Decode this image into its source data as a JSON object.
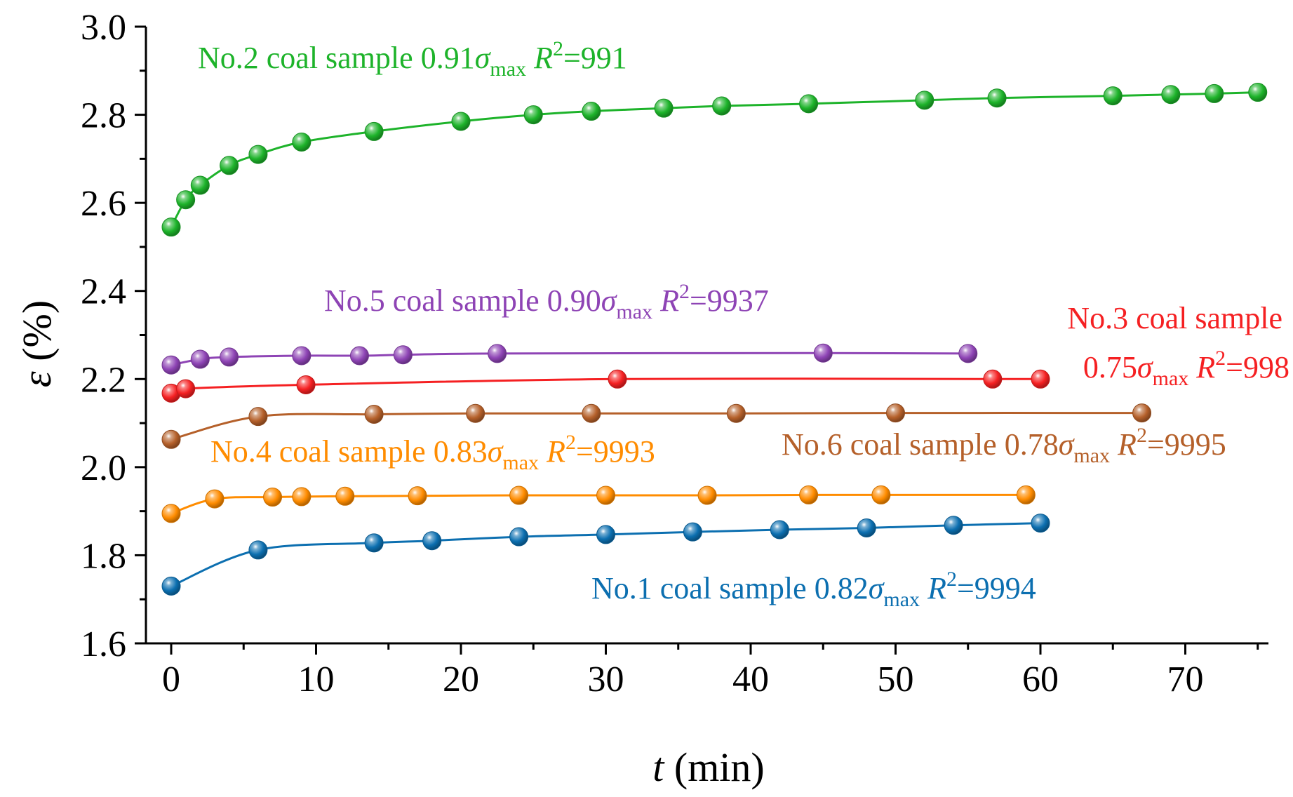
{
  "chart_data": {
    "type": "line",
    "xlabel": {
      "var": "t",
      "unit": " (min)"
    },
    "ylabel": {
      "var": "ε",
      "unit": " (%)"
    },
    "xlim": [
      -2,
      76
    ],
    "ylim": [
      1.6,
      3.0
    ],
    "x_ticks": [
      "0",
      "10",
      "20",
      "30",
      "40",
      "50",
      "60",
      "70"
    ],
    "y_ticks": [
      "1.6",
      "1.8",
      "2.0",
      "2.2",
      "2.4",
      "2.6",
      "2.8",
      "3.0"
    ],
    "marker": "sphere",
    "series": [
      {
        "key": "s2",
        "color": "#1db32a",
        "annotation": {
          "lines": [
            [
              "No.2 coal sample 0.91",
              "σ",
              "max",
              "R",
              "2",
              "=991"
            ]
          ]
        },
        "x": [
          0,
          1,
          2,
          4,
          6,
          9,
          14,
          20,
          25,
          29,
          34,
          38,
          44,
          52,
          57,
          65,
          69,
          72,
          75
        ],
        "y": [
          2.545,
          2.607,
          2.64,
          2.685,
          2.71,
          2.738,
          2.762,
          2.785,
          2.8,
          2.808,
          2.815,
          2.82,
          2.825,
          2.833,
          2.838,
          2.843,
          2.846,
          2.848,
          2.851
        ]
      },
      {
        "key": "s5",
        "color": "#8e44b5",
        "annotation": {
          "lines": [
            [
              "No.5 coal sample 0.90",
              "σ",
              "max",
              "R",
              "2",
              "=9937"
            ]
          ]
        },
        "x": [
          0,
          2,
          4,
          9,
          13,
          16,
          22.5,
          45,
          55
        ],
        "y": [
          2.232,
          2.245,
          2.25,
          2.253,
          2.253,
          2.255,
          2.258,
          2.259,
          2.258
        ]
      },
      {
        "key": "s3",
        "color": "#f52022",
        "annotation": {
          "lines": [
            [
              "No.3 coal sample"
            ],
            [
              "0.75",
              "σ",
              "max",
              "R",
              "2",
              "=998"
            ]
          ]
        },
        "x": [
          0,
          1,
          9.3,
          30.8,
          56.7,
          60
        ],
        "y": [
          2.168,
          2.178,
          2.187,
          2.2,
          2.2,
          2.2
        ]
      },
      {
        "key": "s6",
        "color": "#b5602a",
        "annotation": {
          "lines": [
            [
              "No.6 coal sample 0.78",
              "σ",
              "max",
              "R",
              "2",
              "=9995"
            ]
          ]
        },
        "x": [
          0,
          6,
          14,
          21,
          29,
          39,
          50,
          67
        ],
        "y": [
          2.063,
          2.115,
          2.12,
          2.122,
          2.122,
          2.122,
          2.123,
          2.123
        ]
      },
      {
        "key": "s4",
        "color": "#ff8c00",
        "annotation": {
          "lines": [
            [
              "No.4 coal sample 0.83",
              "σ",
              "max",
              "R",
              "2",
              "=9993"
            ]
          ]
        },
        "x": [
          0,
          3,
          7,
          9,
          12,
          17,
          24,
          30,
          37,
          44,
          49,
          59
        ],
        "y": [
          1.895,
          1.928,
          1.932,
          1.933,
          1.934,
          1.935,
          1.936,
          1.936,
          1.936,
          1.937,
          1.937,
          1.937
        ]
      },
      {
        "key": "s1",
        "color": "#0c6fb0",
        "annotation": {
          "lines": [
            [
              "No.1 coal sample 0.82",
              "σ",
              "max",
              "R",
              "2",
              "=9994"
            ]
          ]
        },
        "x": [
          0,
          6,
          14,
          18,
          24,
          30,
          36,
          42,
          48,
          54,
          60
        ],
        "y": [
          1.73,
          1.812,
          1.828,
          1.833,
          1.842,
          1.847,
          1.853,
          1.858,
          1.862,
          1.868,
          1.873
        ]
      }
    ]
  }
}
